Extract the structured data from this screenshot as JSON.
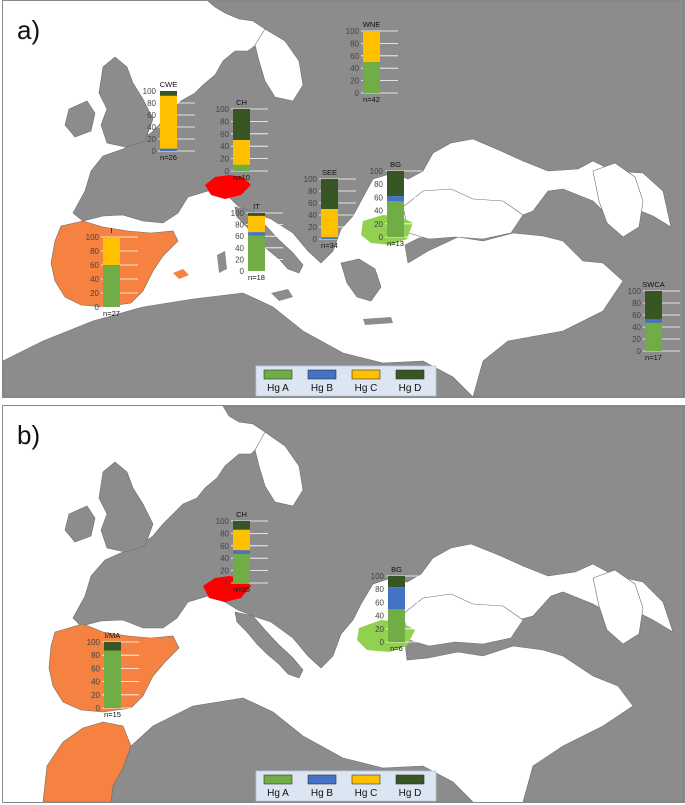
{
  "colors": {
    "Hg A": "#70ad47",
    "Hg B": "#4472c4",
    "Hg C": "#ffc000",
    "Hg D": "#375623",
    "land": "#8c8c8c",
    "sea": "#ffffff",
    "highlight_ch": "#ff0000",
    "highlight_iberia": "#f58240",
    "highlight_bg": "#92d050"
  },
  "legend": [
    "Hg A",
    "Hg B",
    "Hg C",
    "Hg D"
  ],
  "chart_data": [
    {
      "type": "bar",
      "panel_label": "a)",
      "stacked": true,
      "series_names": [
        "Hg A",
        "Hg B",
        "Hg C",
        "Hg D"
      ],
      "ylim": [
        0,
        100
      ],
      "yticks": [
        0,
        20,
        40,
        60,
        80,
        100
      ],
      "regions": [
        {
          "id": "CWE",
          "label": "CWE",
          "n": "n=26",
          "values": [
            0,
            4,
            88,
            8
          ]
        },
        {
          "id": "CH",
          "label": "CH",
          "n": "n=10",
          "values": [
            10,
            0,
            40,
            50
          ]
        },
        {
          "id": "WNE",
          "label": "WNE",
          "n": "n=42",
          "values": [
            50,
            0,
            50,
            0
          ]
        },
        {
          "id": "SEE",
          "label": "SEE",
          "n": "n=34",
          "values": [
            0,
            3,
            47,
            50
          ]
        },
        {
          "id": "BG",
          "label": "BG",
          "n": "n=13",
          "values": [
            54,
            8,
            0,
            38
          ]
        },
        {
          "id": "IT",
          "label": "IT",
          "n": "n=18",
          "values": [
            61,
            6,
            28,
            5
          ]
        },
        {
          "id": "I",
          "label": "I",
          "n": "n=27",
          "values": [
            60,
            0,
            40,
            0
          ]
        },
        {
          "id": "SWCA",
          "label": "SWCA",
          "n": "n=17",
          "values": [
            47,
            6,
            0,
            47
          ]
        }
      ]
    },
    {
      "type": "bar",
      "panel_label": "b)",
      "stacked": true,
      "series_names": [
        "Hg A",
        "Hg B",
        "Hg C",
        "Hg D"
      ],
      "ylim": [
        0,
        100
      ],
      "yticks": [
        0,
        20,
        40,
        60,
        80,
        100
      ],
      "regions": [
        {
          "id": "CH",
          "label": "CH",
          "n": "n=35",
          "values": [
            47,
            6,
            33,
            14
          ]
        },
        {
          "id": "BG",
          "label": "BG",
          "n": "n=6",
          "values": [
            50,
            33,
            0,
            17
          ]
        },
        {
          "id": "I/MA",
          "label": "I/MA",
          "n": "n=15",
          "values": [
            87,
            0,
            0,
            13
          ]
        }
      ]
    }
  ]
}
